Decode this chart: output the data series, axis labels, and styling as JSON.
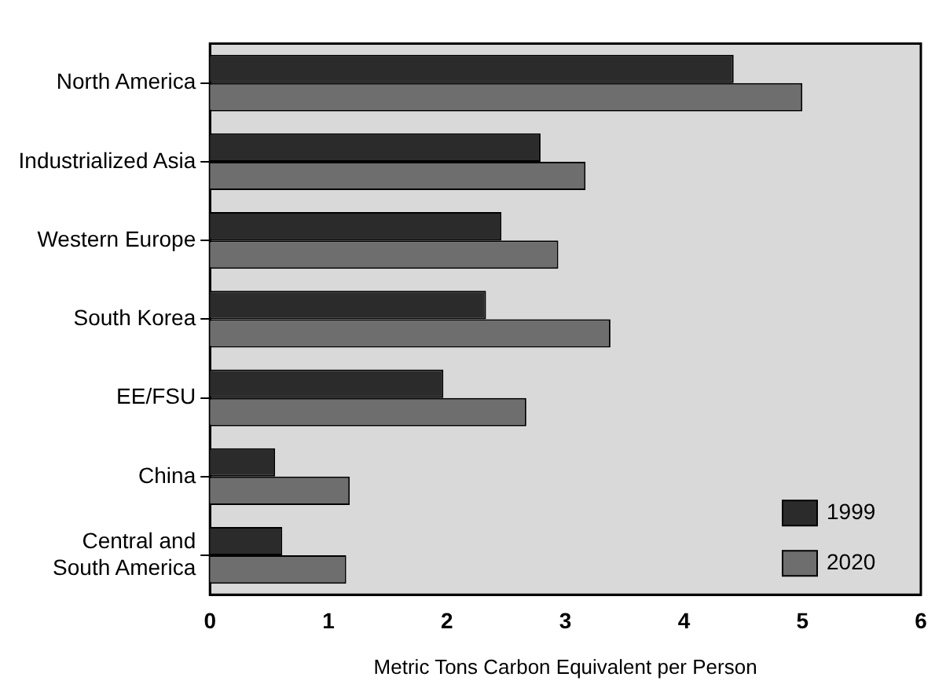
{
  "chart_data": {
    "type": "bar",
    "orientation": "horizontal",
    "xlabel": "Metric Tons Carbon Equivalent per Person",
    "categories": [
      "North America",
      "Industrialized Asia",
      "Western Europe",
      "South Korea",
      "EE/FSU",
      "China",
      "Central and\nSouth America"
    ],
    "series": [
      {
        "name": "1999",
        "color": "#2b2b2b",
        "values": [
          4.42,
          2.79,
          2.46,
          2.33,
          1.97,
          0.55,
          0.61
        ]
      },
      {
        "name": "2020",
        "color": "#6e6e6e",
        "values": [
          5.0,
          3.17,
          2.94,
          3.38,
          2.67,
          1.18,
          1.15
        ]
      }
    ],
    "xlim": [
      0,
      6
    ],
    "xticks": [
      0,
      1,
      2,
      3,
      4,
      5,
      6
    ],
    "grid": false,
    "legend": "bottom right"
  }
}
